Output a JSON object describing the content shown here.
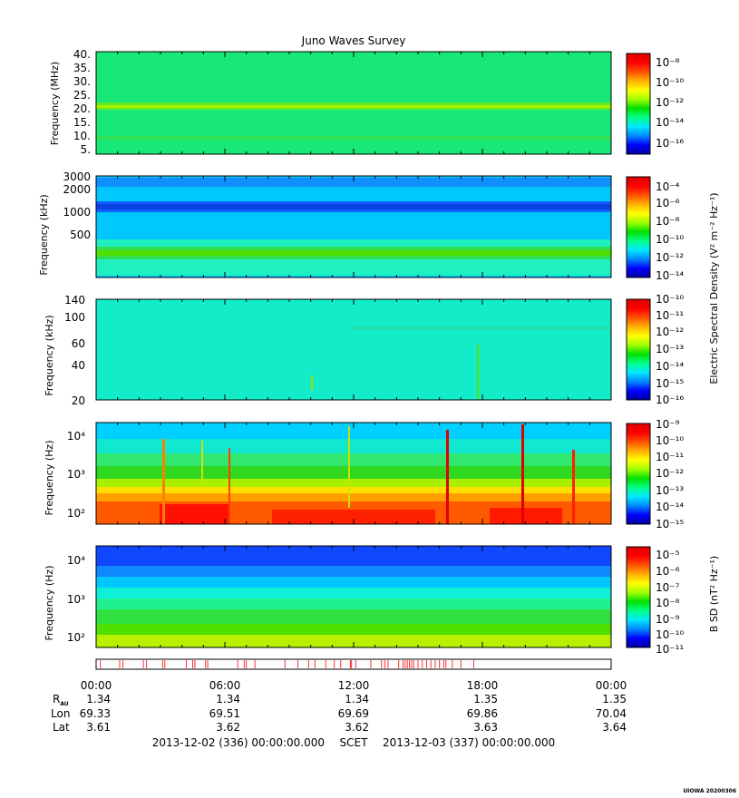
{
  "title": "Juno Waves Survey",
  "colors": {
    "ramp": [
      "#0000a0",
      "#0000ff",
      "#0088ff",
      "#00e8ff",
      "#00ff88",
      "#00e000",
      "#a0ff00",
      "#ffff00",
      "#ffb000",
      "#ff5000",
      "#ff0000",
      "#e00000"
    ]
  },
  "shared_colorbar_label": "Electric Spectral Density (V² m⁻² Hz⁻¹)",
  "panels": [
    {
      "ylabel": "Frequency (MHz)",
      "yticks": [
        "40.",
        "35.",
        "30.",
        "25.",
        "20.",
        "15.",
        "10.",
        "5."
      ],
      "cbar_ticks": [
        "10⁻⁸",
        "10⁻¹⁰",
        "10⁻¹²",
        "10⁻¹⁴",
        "10⁻¹⁶"
      ]
    },
    {
      "ylabel": "Frequency (kHz)",
      "yticks": [
        "3000",
        "2000",
        "1000",
        "500"
      ],
      "cbar_ticks": [
        "10⁻⁴",
        "10⁻⁶",
        "10⁻⁸",
        "10⁻¹⁰",
        "10⁻¹²",
        "10⁻¹⁴"
      ]
    },
    {
      "ylabel": "Frequency (kHz)",
      "yticks": [
        "140",
        "100",
        "60",
        "40",
        "20"
      ],
      "cbar_ticks": [
        "10⁻¹⁰",
        "10⁻¹¹",
        "10⁻¹²",
        "10⁻¹³",
        "10⁻¹⁴",
        "10⁻¹⁵",
        "10⁻¹⁶"
      ]
    },
    {
      "ylabel": "Frequency (Hz)",
      "yticks": [
        "10⁴",
        "10³",
        "10²"
      ],
      "cbar_ticks": [
        "10⁻⁹",
        "10⁻¹⁰",
        "10⁻¹¹",
        "10⁻¹²",
        "10⁻¹³",
        "10⁻¹⁴",
        "10⁻¹⁵"
      ]
    },
    {
      "ylabel": "Frequency (Hz)",
      "yticks": [
        "10⁴",
        "10³",
        "10²"
      ],
      "cbar_label": "B SD (nT² Hz⁻¹)",
      "cbar_ticks": [
        "10⁻⁵",
        "10⁻⁶",
        "10⁻⁷",
        "10⁻⁸",
        "10⁻⁹",
        "10⁻¹⁰",
        "10⁻¹¹"
      ]
    }
  ],
  "time_axis": {
    "ticks": [
      "00:00",
      "06:00",
      "12:00",
      "18:00",
      "00:00"
    ],
    "rows": [
      {
        "label_main": "R",
        "label_sub": "AU",
        "values": [
          "1.34",
          "1.34",
          "1.34",
          "1.35",
          "1.35"
        ]
      },
      {
        "label_main": "Lon",
        "label_sub": "",
        "values": [
          "69.33",
          "69.51",
          "69.69",
          "69.86",
          "70.04"
        ]
      },
      {
        "label_main": "Lat",
        "label_sub": "",
        "values": [
          "3.61",
          "3.62",
          "3.62",
          "3.63",
          "3.64"
        ]
      }
    ],
    "range_start": "2013-12-02 (336) 00:00:00.000",
    "scet": "SCET",
    "range_end": "2013-12-03 (337) 00:00:00.000"
  },
  "footer_tag": "UIOWA 20200306",
  "chart_data": {
    "type": "heatmap",
    "title": "Juno Waves Survey",
    "x_range": [
      "2013-12-02 00:00",
      "2013-12-03 00:00"
    ],
    "panels": [
      {
        "ylabel": "Frequency (MHz)",
        "ylim": [
          3,
          41
        ],
        "yscale": "linear",
        "clim_exp": [
          -17,
          -7.5
        ],
        "colorbar": "Electric Spectral Density (V² m⁻² Hz⁻¹)",
        "features": [
          {
            "kind": "band",
            "freq": 21,
            "level_exp": -12.5
          },
          {
            "kind": "band",
            "freq": 8.5,
            "level_exp": -13.1
          }
        ]
      },
      {
        "ylabel": "Frequency (kHz)",
        "ylim": [
          150,
          3000
        ],
        "yscale": "linear",
        "clim_exp": [
          -14,
          -3.5
        ],
        "features": [
          {
            "kind": "band",
            "freq": 2500,
            "level_exp": -11.5
          },
          {
            "kind": "band",
            "freq": 1200,
            "level_exp": -11.6
          },
          {
            "kind": "band",
            "freq": 320,
            "level_exp": -8.8
          }
        ]
      },
      {
        "ylabel": "Frequency (kHz)",
        "ylim": [
          20,
          140
        ],
        "yscale": "linear",
        "clim_exp": [
          -16,
          -10
        ],
        "features": []
      },
      {
        "ylabel": "Frequency (Hz)",
        "ylim": [
          50,
          20000
        ],
        "yscale": "log",
        "clim_exp": [
          -15,
          -9
        ],
        "bursts": [
          "03:10",
          "05:05",
          "06:15",
          "12:00",
          "16:35",
          "20:05",
          "22:20"
        ]
      },
      {
        "ylabel": "Frequency (Hz)",
        "ylim": [
          50,
          20000
        ],
        "yscale": "log",
        "clim_exp": [
          -11,
          -4.6
        ],
        "colorbar": "B SD (nT² Hz⁻¹)"
      }
    ],
    "ephemeris": {
      "times": [
        "00:00",
        "06:00",
        "12:00",
        "18:00",
        "00:00"
      ],
      "R_AU": [
        1.34,
        1.34,
        1.34,
        1.35,
        1.35
      ],
      "Lon": [
        69.33,
        69.51,
        69.69,
        69.86,
        70.04
      ],
      "Lat": [
        3.61,
        3.62,
        3.62,
        3.63,
        3.64
      ]
    }
  }
}
